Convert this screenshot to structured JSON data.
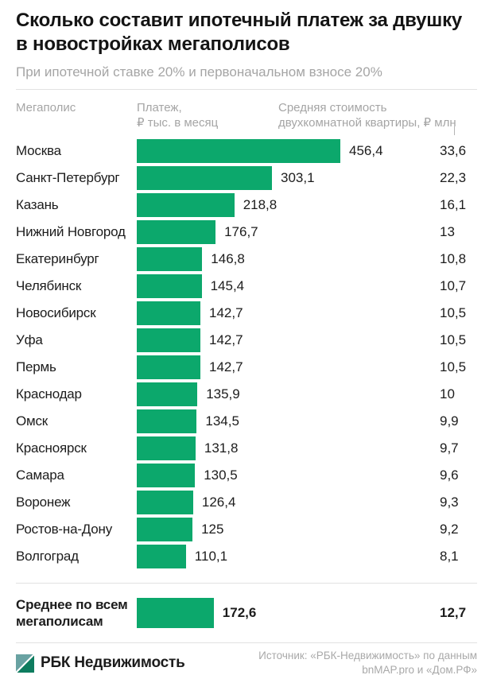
{
  "header": {
    "title_line1": "Сколько составит ипотечный платеж за двушку",
    "title_line2": "в новостройках мегаполисов",
    "subtitle": "При ипотечной ставке 20% и первоначальном взносе 20%"
  },
  "columns": {
    "city": "Мегаполис",
    "payment_line1": "Платеж,",
    "payment_line2": "₽ тыс. в месяц",
    "price_line1": "Средняя стоимость",
    "price_line2": "двухкомнатной квартиры, ₽ млн"
  },
  "chart_data": {
    "type": "bar",
    "orientation": "horizontal",
    "title": "Сколько составит ипотечный платеж за двушку в новостройках мегаполисов",
    "subtitle": "При ипотечной ставке 20% и первоначальном взносе 20%",
    "bar_color": "#0CA86C",
    "xlim": [
      0,
      456.4
    ],
    "grid": false,
    "categories": [
      "Москва",
      "Санкт-Петербург",
      "Казань",
      "Нижний Новгород",
      "Екатеринбург",
      "Челябинск",
      "Новосибирск",
      "Уфа",
      "Пермь",
      "Краснодар",
      "Омск",
      "Красноярск",
      "Самара",
      "Воронеж",
      "Ростов-на-Дону",
      "Волгоград"
    ],
    "series": [
      {
        "name": "Платеж, ₽ тыс. в месяц",
        "values": [
          456.4,
          303.1,
          218.8,
          176.7,
          146.8,
          145.4,
          142.7,
          142.7,
          142.7,
          135.9,
          134.5,
          131.8,
          130.5,
          126.4,
          125,
          110.1
        ],
        "labels": [
          "456,4",
          "303,1",
          "218,8",
          "176,7",
          "146,8",
          "145,4",
          "142,7",
          "142,7",
          "142,7",
          "135,9",
          "134,5",
          "131,8",
          "130,5",
          "126,4",
          "125",
          "110,1"
        ]
      },
      {
        "name": "Средняя стоимость двухкомнатной квартиры, ₽ млн",
        "values": [
          33.6,
          22.3,
          16.1,
          13,
          10.8,
          10.7,
          10.5,
          10.5,
          10.5,
          10,
          9.9,
          9.7,
          9.6,
          9.3,
          9.2,
          8.1
        ],
        "labels": [
          "33,6",
          "22,3",
          "16,1",
          "13",
          "10,8",
          "10,7",
          "10,5",
          "10,5",
          "10,5",
          "10",
          "9,9",
          "9,7",
          "9,6",
          "9,3",
          "9,2",
          "8,1"
        ]
      }
    ],
    "summary": {
      "label": "Среднее по всем мегаполисам",
      "payment_value": 172.6,
      "payment_label": "172,6",
      "price_value": 12.7,
      "price_label": "12,7"
    }
  },
  "footer": {
    "brand": "РБК Недвижимость",
    "logo_color_top": "#69A2A2",
    "logo_color_bottom": "#0E7C5F",
    "source_line1": "Источник: «РБК-Недвижимость» по данным",
    "source_line2": "bnMAP.pro и «Дом.РФ»"
  }
}
